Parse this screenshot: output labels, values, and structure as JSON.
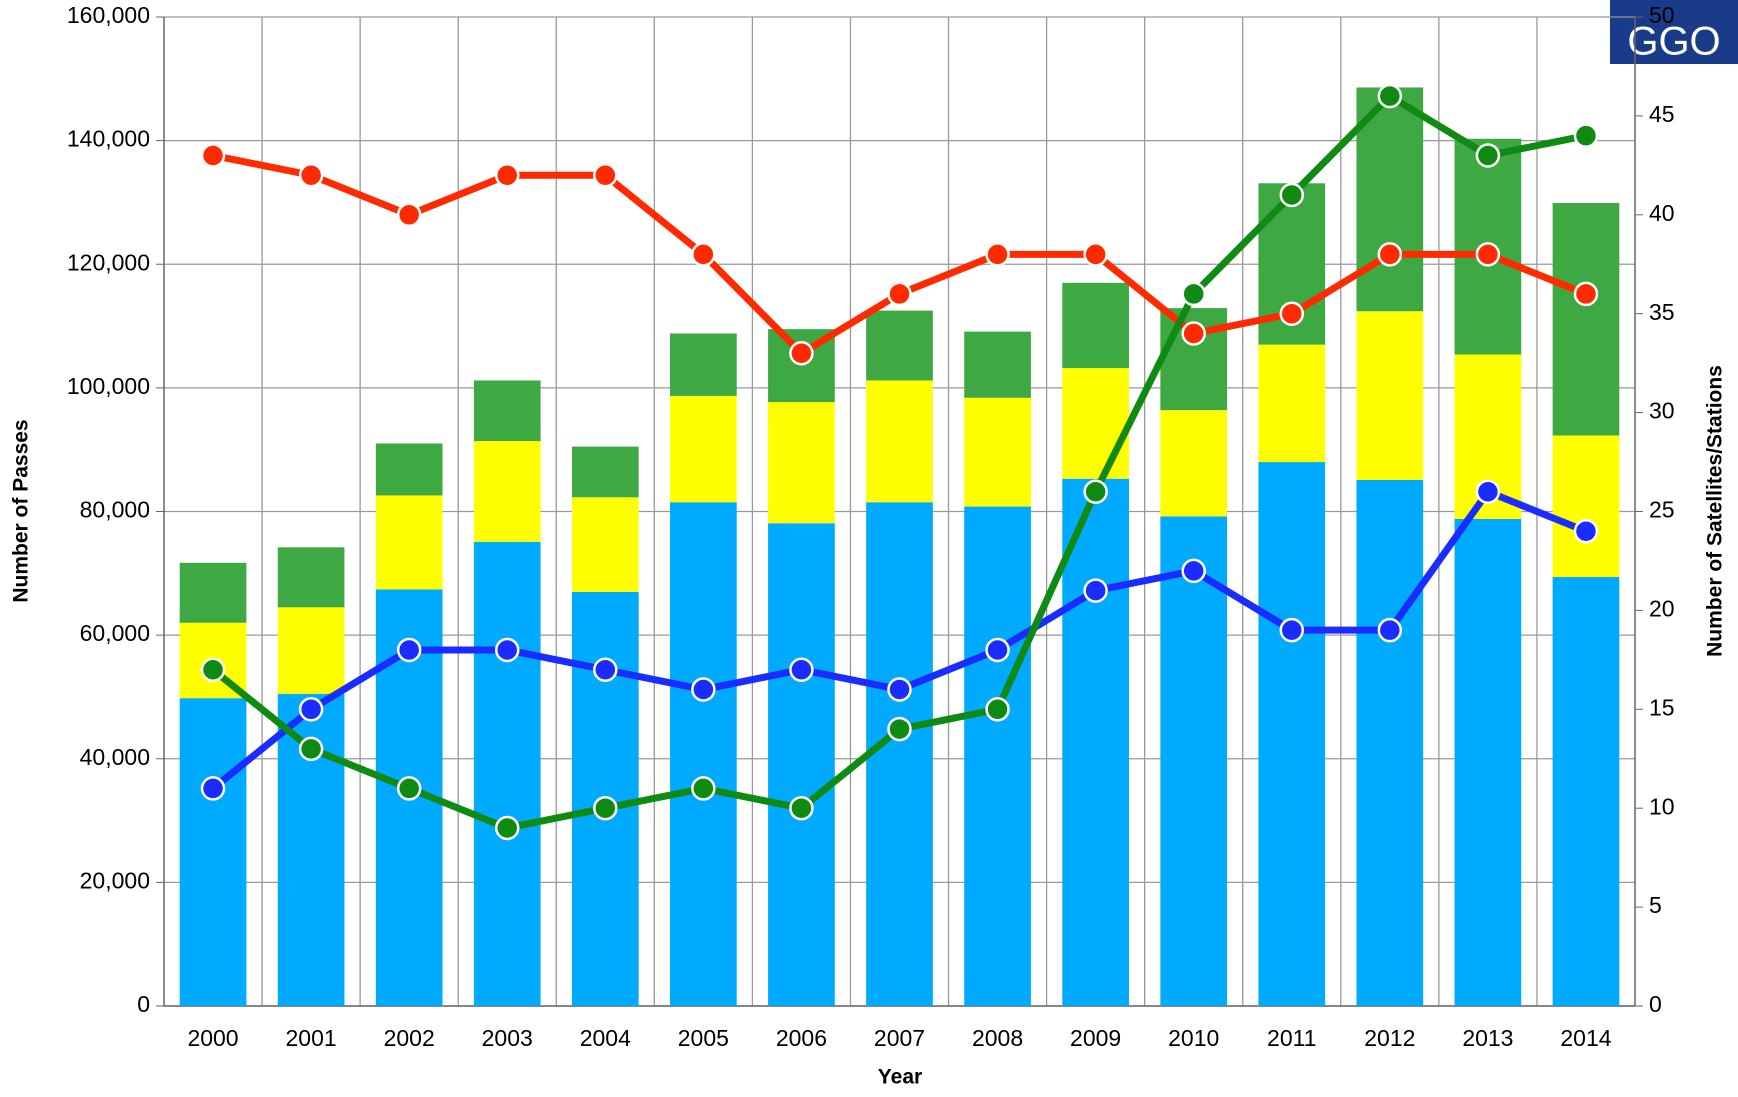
{
  "chart_data": {
    "type": "bar",
    "stacked": true,
    "xlabel": "Year",
    "ylabel": "Number of Passes",
    "y2label": "Number of Satellites/Stations",
    "logo": "GGO",
    "categories": [
      "2000",
      "2001",
      "2002",
      "2003",
      "2004",
      "2005",
      "2006",
      "2007",
      "2008",
      "2009",
      "2010",
      "2011",
      "2012",
      "2013",
      "2014"
    ],
    "series": [
      {
        "color": "#00aaff",
        "values": [
          49800,
          50500,
          67400,
          75100,
          67000,
          81500,
          78100,
          81500,
          80800,
          85300,
          79200,
          88000,
          85100,
          78800,
          69400
        ]
      },
      {
        "color": "#ffff00",
        "values": [
          12200,
          14000,
          15200,
          16300,
          15300,
          17200,
          19600,
          19700,
          17600,
          17900,
          17200,
          19000,
          27300,
          26600,
          22900
        ]
      },
      {
        "color": "#3ea843",
        "values": [
          9700,
          9700,
          8400,
          9800,
          8200,
          10100,
          11800,
          11300,
          10700,
          13800,
          16500,
          26100,
          36200,
          34900,
          37600
        ]
      },
      {
        "type": "line",
        "axis": "y2",
        "color": "#ff2a00",
        "values": [
          43,
          42,
          40,
          42,
          42,
          38,
          33,
          36,
          38,
          38,
          34,
          35,
          38,
          38,
          36
        ]
      },
      {
        "type": "line",
        "axis": "y2",
        "color": "#1a2cff",
        "values": [
          11,
          15,
          18,
          18,
          17,
          16,
          17,
          16,
          18,
          21,
          22,
          19,
          19,
          26,
          24
        ]
      },
      {
        "type": "line",
        "axis": "y2",
        "color": "#0f8a12",
        "values": [
          17,
          13,
          11,
          9,
          10,
          11,
          10,
          14,
          15,
          26,
          36,
          41,
          46,
          43,
          44
        ]
      }
    ],
    "ylim": [
      0,
      160000
    ],
    "yticks": [
      0,
      {
        "value": 20000,
        "label": "20,000"
      },
      {
        "value": 40000,
        "label": "40,000"
      },
      {
        "value": 60000,
        "label": "60,000"
      },
      {
        "value": 80000,
        "label": "80,000"
      },
      {
        "value": 100000,
        "label": "100,000"
      },
      {
        "value": 120000,
        "label": "120,000"
      },
      {
        "value": 140000,
        "label": "140,000"
      },
      {
        "value": 160000,
        "label": "160,000"
      }
    ],
    "y2lim": [
      0,
      50
    ],
    "y2ticks": [
      0,
      5,
      10,
      15,
      20,
      25,
      30,
      35,
      40,
      45,
      50
    ],
    "grid": true
  }
}
